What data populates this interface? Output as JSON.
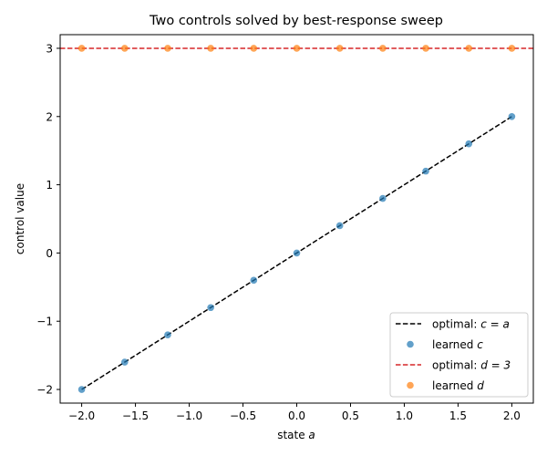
{
  "chart_data": {
    "type": "line",
    "title": "Two controls solved by best-response sweep",
    "xlabel_prefix": "state ",
    "xlabel_var": "a",
    "ylabel": "control value",
    "xlim": [
      -2.2,
      2.2
    ],
    "ylim": [
      -2.2,
      3.2
    ],
    "x_ticks": [
      -2.0,
      -1.5,
      -1.0,
      -0.5,
      0.0,
      0.5,
      1.0,
      1.5,
      2.0
    ],
    "x_tick_labels": [
      "−2.0",
      "−1.5",
      "−1.0",
      "−0.5",
      "0.0",
      "0.5",
      "1.0",
      "1.5",
      "2.0"
    ],
    "y_ticks": [
      -2,
      -1,
      0,
      1,
      2,
      3
    ],
    "y_tick_labels": [
      "−2",
      "−1",
      "0",
      "1",
      "2",
      "3"
    ],
    "grid": false,
    "legend_position": "lower-right",
    "series": [
      {
        "name": "optimal: c = a",
        "legend_prefix": "optimal: ",
        "legend_math": "c = a",
        "kind": "line",
        "style": "dashed",
        "color": "#000000",
        "x": [
          -2.0,
          2.0
        ],
        "y": [
          -2.0,
          2.0
        ]
      },
      {
        "name": "learned c",
        "legend_prefix": "learned ",
        "legend_math": "c",
        "kind": "scatter",
        "color": "#1f77b4",
        "x": [
          -2.0,
          -1.6,
          -1.2,
          -0.8,
          -0.4,
          0.0,
          0.4,
          0.8,
          1.2,
          1.6,
          2.0
        ],
        "y": [
          -2.0,
          -1.6,
          -1.2,
          -0.8,
          -0.4,
          0.0,
          0.4,
          0.8,
          1.2,
          1.6,
          2.0
        ]
      },
      {
        "name": "optimal: d = 3",
        "legend_prefix": "optimal: ",
        "legend_math": "d = 3",
        "kind": "hline",
        "style": "dashed",
        "color": "#d62728",
        "y_value": 3
      },
      {
        "name": "learned d",
        "legend_prefix": "learned ",
        "legend_math": "d",
        "kind": "scatter",
        "color": "#ff7f0e",
        "x": [
          -2.0,
          -1.6,
          -1.2,
          -0.8,
          -0.4,
          0.0,
          0.4,
          0.8,
          1.2,
          1.6,
          2.0
        ],
        "y": [
          3,
          3,
          3,
          3,
          3,
          3,
          3,
          3,
          3,
          3,
          3
        ]
      }
    ]
  }
}
